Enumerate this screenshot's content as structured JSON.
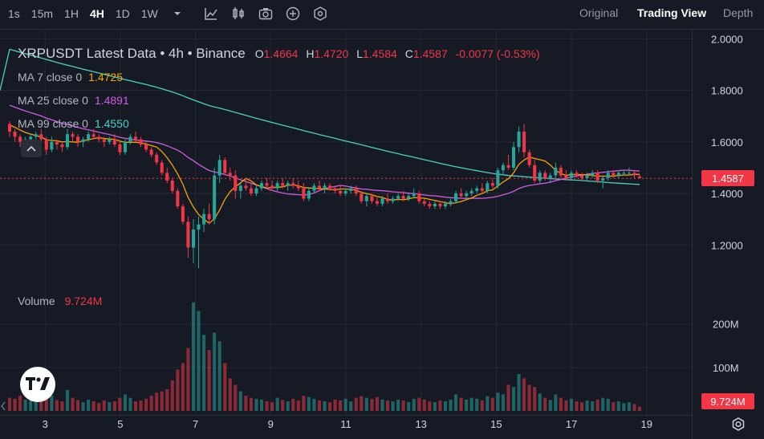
{
  "toolbar": {
    "timeframes": [
      "1s",
      "15m",
      "1H",
      "4H",
      "1D",
      "1W"
    ],
    "active_timeframe": "4H",
    "icons": [
      "chevron-down-icon",
      "line-chart-icon",
      "candles-icon",
      "camera-icon",
      "plus-circle-icon",
      "settings-hex-icon"
    ],
    "views": [
      "Original",
      "Trading View",
      "Depth"
    ],
    "active_view": "Trading View"
  },
  "legend": {
    "title": "XRPUSDT Latest Data • 4h • Binance",
    "ohlc": [
      {
        "key": "O",
        "value": "1.4664"
      },
      {
        "key": "H",
        "value": "1.4720"
      },
      {
        "key": "L",
        "value": "1.4584"
      },
      {
        "key": "C",
        "value": "1.4587"
      }
    ],
    "change": "-0.0077 (-0.53%)",
    "ma": [
      {
        "label": "MA 7 close 0",
        "value": "1.4725",
        "color": "#f7a600"
      },
      {
        "label": "MA 25 close 0",
        "value": "1.4891",
        "color": "#d05ce3"
      },
      {
        "label": "MA 99 close 0",
        "value": "1.4550",
        "color": "#4dd0c4"
      }
    ]
  },
  "volume_legend": {
    "label": "Volume",
    "value": "9.724M"
  },
  "last_price_tag": "1.4587",
  "last_volume_tag": "9.724M",
  "colors": {
    "up": "#26a69a",
    "down": "#f23645",
    "background": "#161a25",
    "grid": "#242833"
  },
  "chart_data": {
    "type": "candlestick",
    "price_axis": {
      "range": [
        1.07,
        2.02
      ],
      "ticks": [
        "2.0000",
        "1.8000",
        "1.6000",
        "1.4000",
        "1.2000"
      ],
      "tick_values": [
        2.0,
        1.8,
        1.6,
        1.4,
        1.2
      ]
    },
    "volume_axis": {
      "range": [
        0,
        290
      ],
      "unit": "M",
      "ticks": [
        "200M",
        "100M"
      ],
      "tick_values": [
        200,
        100
      ]
    },
    "x_axis": {
      "range": [
        1.8,
        20.2
      ],
      "ticks": [
        "3",
        "5",
        "7",
        "9",
        "11",
        "13",
        "15",
        "17",
        "19"
      ],
      "tick_values": [
        3,
        5,
        7,
        9,
        11,
        13,
        15,
        17,
        19
      ]
    },
    "last_price": 1.4587,
    "candles": [
      [
        1.67,
        1.68,
        1.62,
        1.64,
        30
      ],
      [
        1.64,
        1.65,
        1.6,
        1.62,
        28
      ],
      [
        1.62,
        1.63,
        1.58,
        1.6,
        35
      ],
      [
        1.6,
        1.62,
        1.57,
        1.61,
        26
      ],
      [
        1.61,
        1.63,
        1.59,
        1.62,
        24
      ],
      [
        1.62,
        1.64,
        1.61,
        1.63,
        22
      ],
      [
        1.63,
        1.65,
        1.6,
        1.61,
        30
      ],
      [
        1.61,
        1.62,
        1.55,
        1.57,
        40
      ],
      [
        1.57,
        1.62,
        1.56,
        1.6,
        35
      ],
      [
        1.6,
        1.61,
        1.57,
        1.59,
        25
      ],
      [
        1.59,
        1.6,
        1.56,
        1.58,
        22
      ],
      [
        1.58,
        1.65,
        1.57,
        1.63,
        48
      ],
      [
        1.63,
        1.64,
        1.6,
        1.62,
        30
      ],
      [
        1.62,
        1.63,
        1.58,
        1.6,
        25
      ],
      [
        1.6,
        1.62,
        1.58,
        1.61,
        20
      ],
      [
        1.61,
        1.64,
        1.6,
        1.63,
        26
      ],
      [
        1.63,
        1.65,
        1.61,
        1.62,
        22
      ],
      [
        1.62,
        1.63,
        1.6,
        1.61,
        18
      ],
      [
        1.61,
        1.62,
        1.58,
        1.6,
        24
      ],
      [
        1.6,
        1.62,
        1.59,
        1.61,
        20
      ],
      [
        1.61,
        1.63,
        1.58,
        1.59,
        22
      ],
      [
        1.59,
        1.6,
        1.55,
        1.56,
        30
      ],
      [
        1.56,
        1.61,
        1.55,
        1.6,
        38
      ],
      [
        1.6,
        1.63,
        1.59,
        1.62,
        30
      ],
      [
        1.62,
        1.64,
        1.6,
        1.61,
        22
      ],
      [
        1.61,
        1.62,
        1.58,
        1.59,
        24
      ],
      [
        1.59,
        1.6,
        1.56,
        1.57,
        28
      ],
      [
        1.57,
        1.58,
        1.54,
        1.55,
        35
      ],
      [
        1.55,
        1.56,
        1.51,
        1.52,
        42
      ],
      [
        1.52,
        1.53,
        1.47,
        1.48,
        45
      ],
      [
        1.48,
        1.5,
        1.44,
        1.45,
        50
      ],
      [
        1.45,
        1.46,
        1.4,
        1.41,
        70
      ],
      [
        1.41,
        1.42,
        1.34,
        1.35,
        95
      ],
      [
        1.35,
        1.36,
        1.28,
        1.29,
        110
      ],
      [
        1.29,
        1.31,
        1.15,
        1.19,
        145
      ],
      [
        1.19,
        1.3,
        1.13,
        1.26,
        250
      ],
      [
        1.26,
        1.31,
        1.11,
        1.28,
        230
      ],
      [
        1.28,
        1.34,
        1.25,
        1.32,
        175
      ],
      [
        1.32,
        1.36,
        1.28,
        1.3,
        140
      ],
      [
        1.3,
        1.5,
        1.28,
        1.47,
        180
      ],
      [
        1.47,
        1.55,
        1.44,
        1.53,
        160
      ],
      [
        1.53,
        1.54,
        1.47,
        1.48,
        110
      ],
      [
        1.48,
        1.5,
        1.45,
        1.47,
        75
      ],
      [
        1.47,
        1.49,
        1.38,
        1.41,
        60
      ],
      [
        1.41,
        1.44,
        1.38,
        1.43,
        45
      ],
      [
        1.43,
        1.46,
        1.41,
        1.42,
        35
      ],
      [
        1.42,
        1.44,
        1.39,
        1.4,
        30
      ],
      [
        1.4,
        1.43,
        1.39,
        1.42,
        28
      ],
      [
        1.42,
        1.45,
        1.41,
        1.44,
        26
      ],
      [
        1.44,
        1.46,
        1.42,
        1.43,
        22
      ],
      [
        1.43,
        1.45,
        1.41,
        1.42,
        20
      ],
      [
        1.42,
        1.45,
        1.41,
        1.44,
        30
      ],
      [
        1.44,
        1.46,
        1.42,
        1.43,
        25
      ],
      [
        1.43,
        1.45,
        1.41,
        1.44,
        22
      ],
      [
        1.44,
        1.46,
        1.42,
        1.43,
        28
      ],
      [
        1.43,
        1.45,
        1.41,
        1.42,
        24
      ],
      [
        1.42,
        1.44,
        1.37,
        1.38,
        35
      ],
      [
        1.38,
        1.42,
        1.37,
        1.41,
        32
      ],
      [
        1.41,
        1.44,
        1.4,
        1.43,
        28
      ],
      [
        1.43,
        1.45,
        1.41,
        1.42,
        24
      ],
      [
        1.42,
        1.44,
        1.4,
        1.43,
        22
      ],
      [
        1.43,
        1.44,
        1.41,
        1.42,
        20
      ],
      [
        1.42,
        1.43,
        1.4,
        1.41,
        26
      ],
      [
        1.41,
        1.43,
        1.39,
        1.4,
        24
      ],
      [
        1.4,
        1.42,
        1.39,
        1.41,
        28
      ],
      [
        1.41,
        1.43,
        1.4,
        1.42,
        22
      ],
      [
        1.42,
        1.43,
        1.39,
        1.4,
        30
      ],
      [
        1.4,
        1.41,
        1.36,
        1.37,
        34
      ],
      [
        1.37,
        1.4,
        1.35,
        1.39,
        30
      ],
      [
        1.39,
        1.4,
        1.36,
        1.37,
        28
      ],
      [
        1.37,
        1.39,
        1.35,
        1.36,
        32
      ],
      [
        1.36,
        1.39,
        1.35,
        1.38,
        26
      ],
      [
        1.38,
        1.4,
        1.36,
        1.37,
        24
      ],
      [
        1.37,
        1.39,
        1.36,
        1.38,
        22
      ],
      [
        1.38,
        1.4,
        1.37,
        1.39,
        26
      ],
      [
        1.39,
        1.41,
        1.37,
        1.38,
        24
      ],
      [
        1.38,
        1.4,
        1.37,
        1.39,
        20
      ],
      [
        1.39,
        1.42,
        1.38,
        1.4,
        28
      ],
      [
        1.4,
        1.41,
        1.36,
        1.37,
        30
      ],
      [
        1.37,
        1.38,
        1.35,
        1.36,
        26
      ],
      [
        1.36,
        1.37,
        1.34,
        1.35,
        22
      ],
      [
        1.35,
        1.37,
        1.34,
        1.36,
        20
      ],
      [
        1.36,
        1.37,
        1.34,
        1.35,
        24
      ],
      [
        1.35,
        1.37,
        1.34,
        1.36,
        22
      ],
      [
        1.36,
        1.38,
        1.35,
        1.37,
        26
      ],
      [
        1.37,
        1.41,
        1.36,
        1.4,
        38
      ],
      [
        1.4,
        1.42,
        1.38,
        1.39,
        30
      ],
      [
        1.39,
        1.41,
        1.38,
        1.4,
        26
      ],
      [
        1.4,
        1.42,
        1.39,
        1.41,
        30
      ],
      [
        1.41,
        1.43,
        1.4,
        1.42,
        28
      ],
      [
        1.42,
        1.44,
        1.4,
        1.41,
        24
      ],
      [
        1.41,
        1.45,
        1.4,
        1.44,
        34
      ],
      [
        1.44,
        1.46,
        1.42,
        1.43,
        30
      ],
      [
        1.43,
        1.5,
        1.42,
        1.49,
        42
      ],
      [
        1.49,
        1.52,
        1.47,
        1.51,
        38
      ],
      [
        1.51,
        1.55,
        1.49,
        1.5,
        60
      ],
      [
        1.5,
        1.6,
        1.49,
        1.58,
        55
      ],
      [
        1.58,
        1.66,
        1.56,
        1.64,
        85
      ],
      [
        1.64,
        1.67,
        1.54,
        1.56,
        75
      ],
      [
        1.56,
        1.57,
        1.5,
        1.51,
        60
      ],
      [
        1.51,
        1.53,
        1.44,
        1.45,
        55
      ],
      [
        1.45,
        1.49,
        1.44,
        1.48,
        40
      ],
      [
        1.48,
        1.49,
        1.45,
        1.46,
        30
      ],
      [
        1.46,
        1.48,
        1.44,
        1.47,
        25
      ],
      [
        1.47,
        1.52,
        1.46,
        1.5,
        38
      ],
      [
        1.5,
        1.51,
        1.46,
        1.47,
        30
      ],
      [
        1.47,
        1.49,
        1.45,
        1.46,
        24
      ],
      [
        1.46,
        1.49,
        1.45,
        1.48,
        28
      ],
      [
        1.48,
        1.49,
        1.46,
        1.47,
        22
      ],
      [
        1.47,
        1.48,
        1.45,
        1.46,
        20
      ],
      [
        1.46,
        1.48,
        1.45,
        1.47,
        24
      ],
      [
        1.47,
        1.49,
        1.46,
        1.48,
        22
      ],
      [
        1.48,
        1.49,
        1.44,
        1.45,
        26
      ],
      [
        1.45,
        1.47,
        1.42,
        1.46,
        30
      ],
      [
        1.46,
        1.49,
        1.45,
        1.48,
        28
      ],
      [
        1.48,
        1.49,
        1.46,
        1.47,
        20
      ],
      [
        1.47,
        1.49,
        1.46,
        1.48,
        22
      ],
      [
        1.48,
        1.49,
        1.47,
        1.48,
        18
      ],
      [
        1.48,
        1.5,
        1.47,
        1.48,
        20
      ],
      [
        1.48,
        1.49,
        1.46,
        1.47,
        16
      ],
      [
        1.4664,
        1.472,
        1.4584,
        1.4587,
        9.724
      ]
    ]
  }
}
